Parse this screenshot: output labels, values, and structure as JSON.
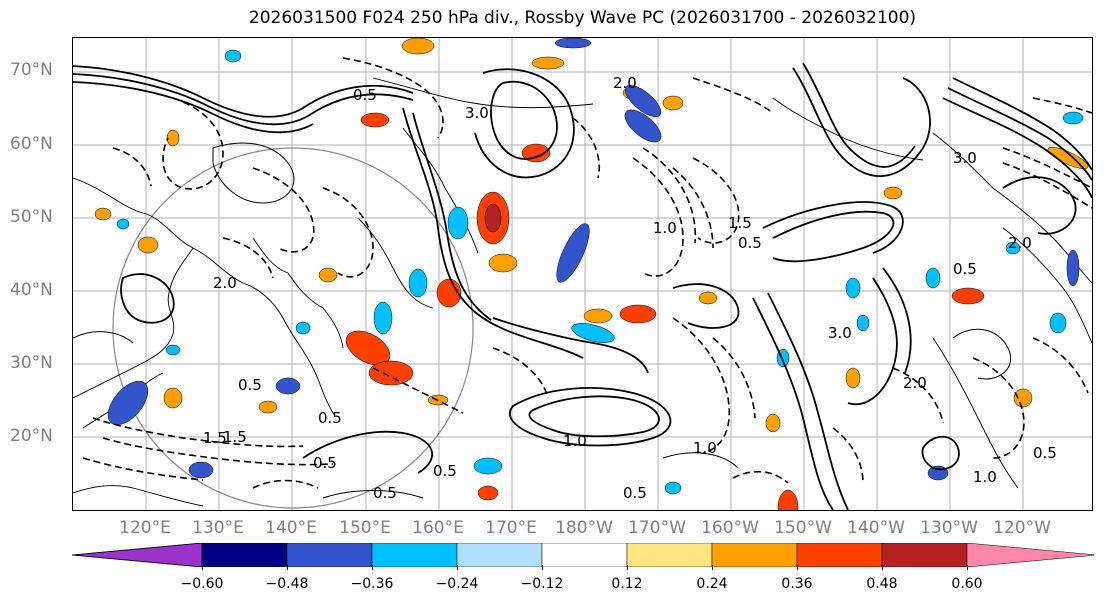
{
  "title": "2026031500 F024 250 hPa div., Rossby Wave PC (2026031700 - 2026032100)",
  "map": {
    "lat_labels": [
      "70°N",
      "60°N",
      "50°N",
      "40°N",
      "30°N",
      "20°N"
    ],
    "lon_labels": [
      "120°E",
      "130°E",
      "140°E",
      "150°E",
      "160°E",
      "170°E",
      "180°W",
      "170°W",
      "160°W",
      "150°W",
      "140°W",
      "130°W",
      "120°W"
    ],
    "contour_labels": [
      "3.0",
      "0.5",
      "3.0",
      "2.0",
      "1.5",
      "0.5",
      "1.0",
      "0.5",
      "1.5",
      "1.0",
      "0.5",
      "2.0",
      "1.0",
      "0.5",
      "0.5",
      "1.0",
      "2.0",
      "0.5",
      "0.5",
      "3.0",
      "2.0",
      "1.5",
      "0.5",
      "0.5"
    ],
    "grid_color": "#b0b0b0",
    "label_color": "#808080"
  },
  "colorbar": {
    "tick_labels": [
      "−0.60",
      "−0.48",
      "−0.36",
      "−0.24",
      "−0.12",
      "0.12",
      "0.24",
      "0.36",
      "0.48",
      "0.60"
    ],
    "colors": [
      "#9933cc",
      "#000080",
      "#3355cc",
      "#00bfff",
      "#b0e0ff",
      "#ffffff",
      "#ffe680",
      "#ffa000",
      "#ff4000",
      "#b22222",
      "#ff88aa"
    ]
  }
}
